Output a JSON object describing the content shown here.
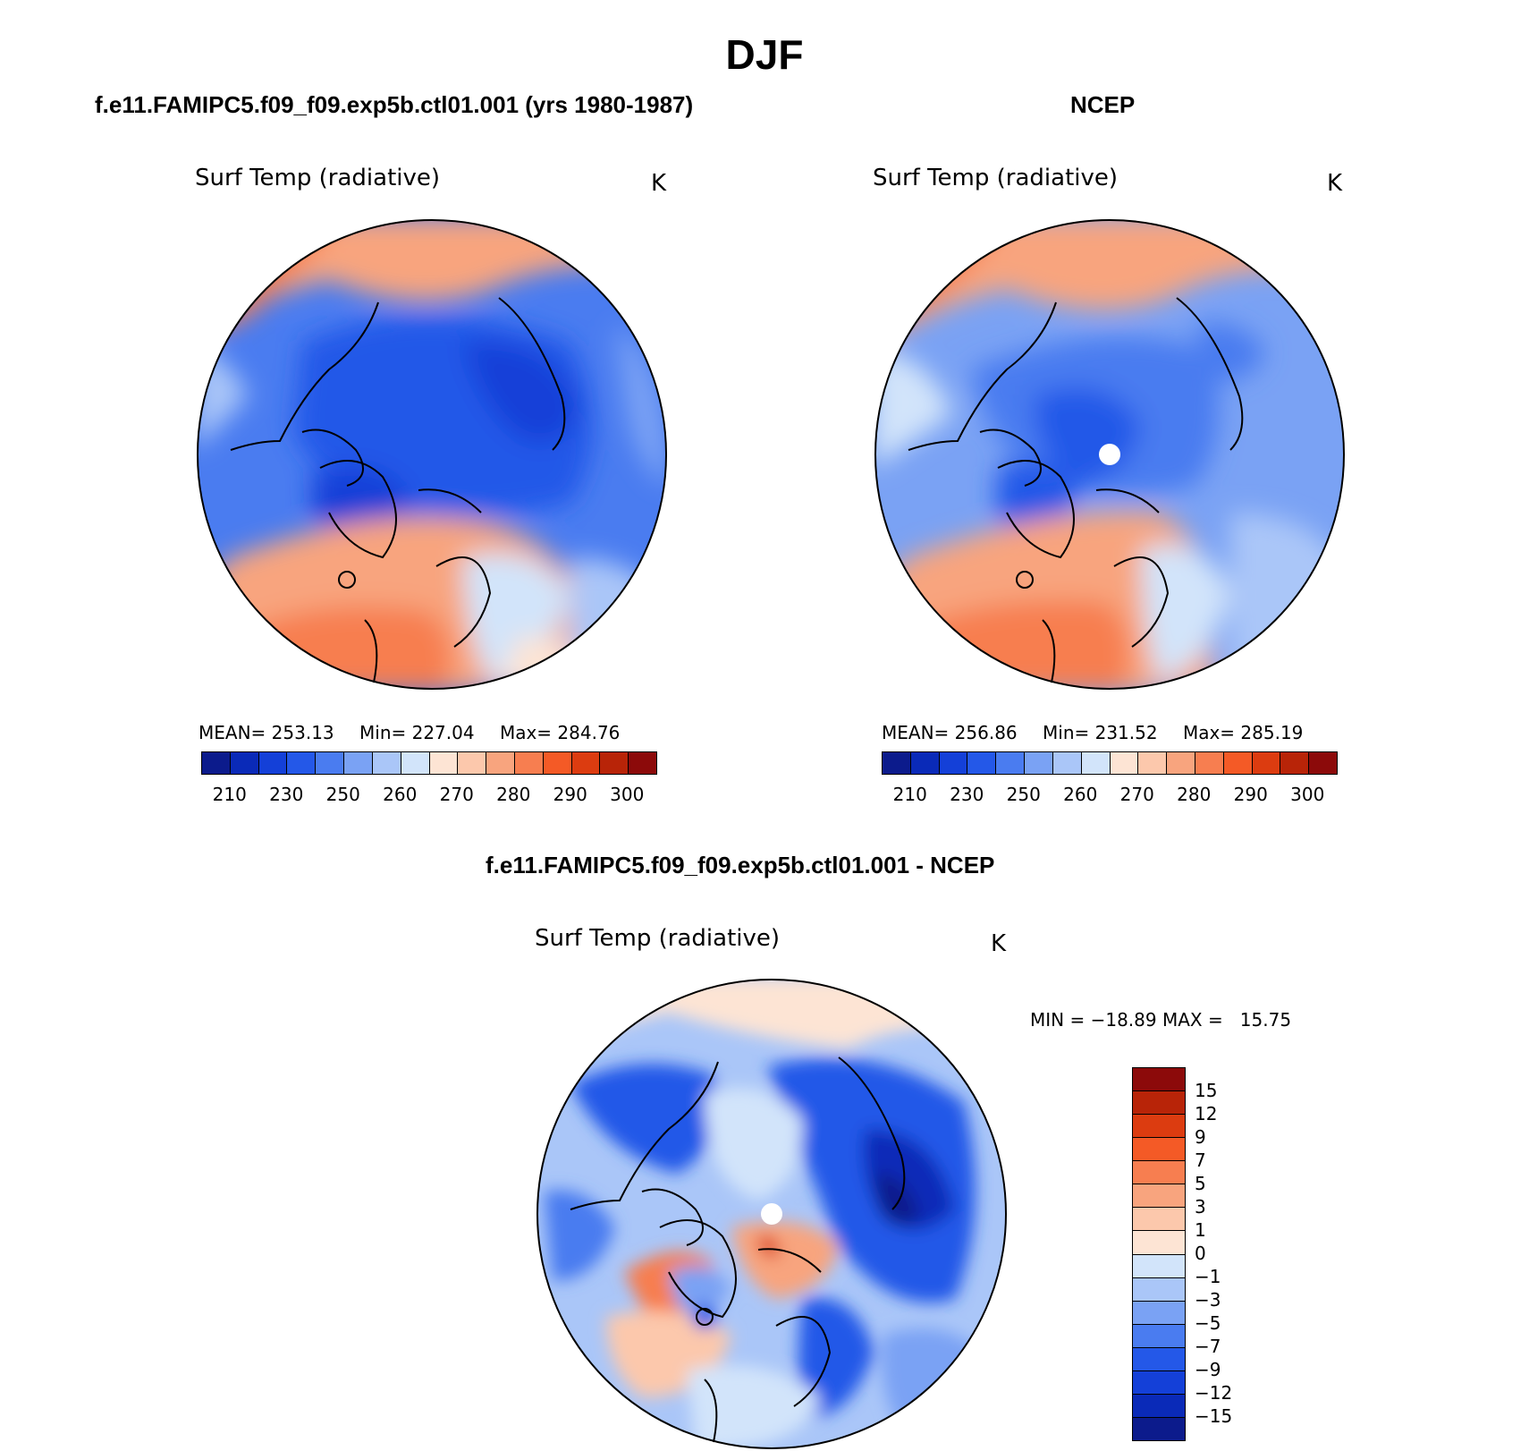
{
  "title": "DJF",
  "panels": [
    {
      "case_title": "f.e11.FAMIPC5.f09_f09.exp5b.ctl01.001 (yrs 1980-1987)",
      "variable": "Surf Temp (radiative)",
      "units": "K",
      "stats": {
        "mean_label": "MEAN=",
        "mean": "253.13",
        "min_label": "Min=",
        "min": "227.04",
        "max_label": "Max=",
        "max": "284.76"
      }
    },
    {
      "case_title": "NCEP",
      "variable": "Surf Temp (radiative)",
      "units": "K",
      "stats": {
        "mean_label": "MEAN=",
        "mean": "256.86",
        "min_label": "Min=",
        "min": "231.52",
        "max_label": "Max=",
        "max": "285.19"
      }
    }
  ],
  "diff": {
    "case_title": "f.e11.FAMIPC5.f09_f09.exp5b.ctl01.001 - NCEP",
    "variable": "Surf Temp (radiative)",
    "units": "K",
    "minmax_text": "MIN = −18.89 MAX =   15.75"
  },
  "colors": {
    "abs_scale": [
      "#0c1b8c",
      "#0a2ab8",
      "#1440d8",
      "#2458e8",
      "#4a7cf0",
      "#7aa2f4",
      "#aac6f8",
      "#d2e4fa",
      "#fde4d4",
      "#fcc8ac",
      "#f8a47e",
      "#f77e50",
      "#f45a26",
      "#dc3c10",
      "#b82408",
      "#8c0a0a"
    ],
    "diff_scale": [
      "#8c0a0a",
      "#b82408",
      "#dc3c10",
      "#f45a26",
      "#f77e50",
      "#f8a47e",
      "#fcc8ac",
      "#fde4d4",
      "#d2e4fa",
      "#aac6f8",
      "#7aa2f4",
      "#4a7cf0",
      "#2458e8",
      "#1440d8",
      "#0a2ab8",
      "#0c1b8c"
    ]
  },
  "chart_data": [
    {
      "type": "heatmap",
      "title": "Surf Temp (radiative)",
      "units": "K",
      "projection": "north polar stereographic",
      "mean": 253.13,
      "min": 227.04,
      "max": 284.76,
      "contour_levels": [
        210,
        220,
        230,
        240,
        250,
        255,
        260,
        265,
        270,
        275,
        280,
        285,
        290,
        295,
        300
      ],
      "colorbar_labels": [
        "210",
        "230",
        "250",
        "260",
        "270",
        "280",
        "290",
        "300"
      ]
    },
    {
      "type": "heatmap",
      "title": "Surf Temp (radiative)",
      "units": "K",
      "projection": "north polar stereographic",
      "mean": 256.86,
      "min": 231.52,
      "max": 285.19,
      "contour_levels": [
        210,
        220,
        230,
        240,
        250,
        255,
        260,
        265,
        270,
        275,
        280,
        285,
        290,
        295,
        300
      ],
      "colorbar_labels": [
        "210",
        "230",
        "250",
        "260",
        "270",
        "280",
        "290",
        "300"
      ]
    },
    {
      "type": "heatmap",
      "title": "Surf Temp (radiative)",
      "units": "K",
      "projection": "north polar stereographic",
      "min": -18.89,
      "max": 15.75,
      "contour_levels": [
        15,
        12,
        9,
        7,
        5,
        3,
        1,
        0,
        -1,
        -3,
        -5,
        -7,
        -9,
        -12,
        -15
      ],
      "colorbar_labels": [
        "15",
        "12",
        "9",
        "7",
        "5",
        "3",
        "1",
        "0",
        "−1",
        "−3",
        "−5",
        "−7",
        "−9",
        "−12",
        "−15"
      ]
    }
  ]
}
